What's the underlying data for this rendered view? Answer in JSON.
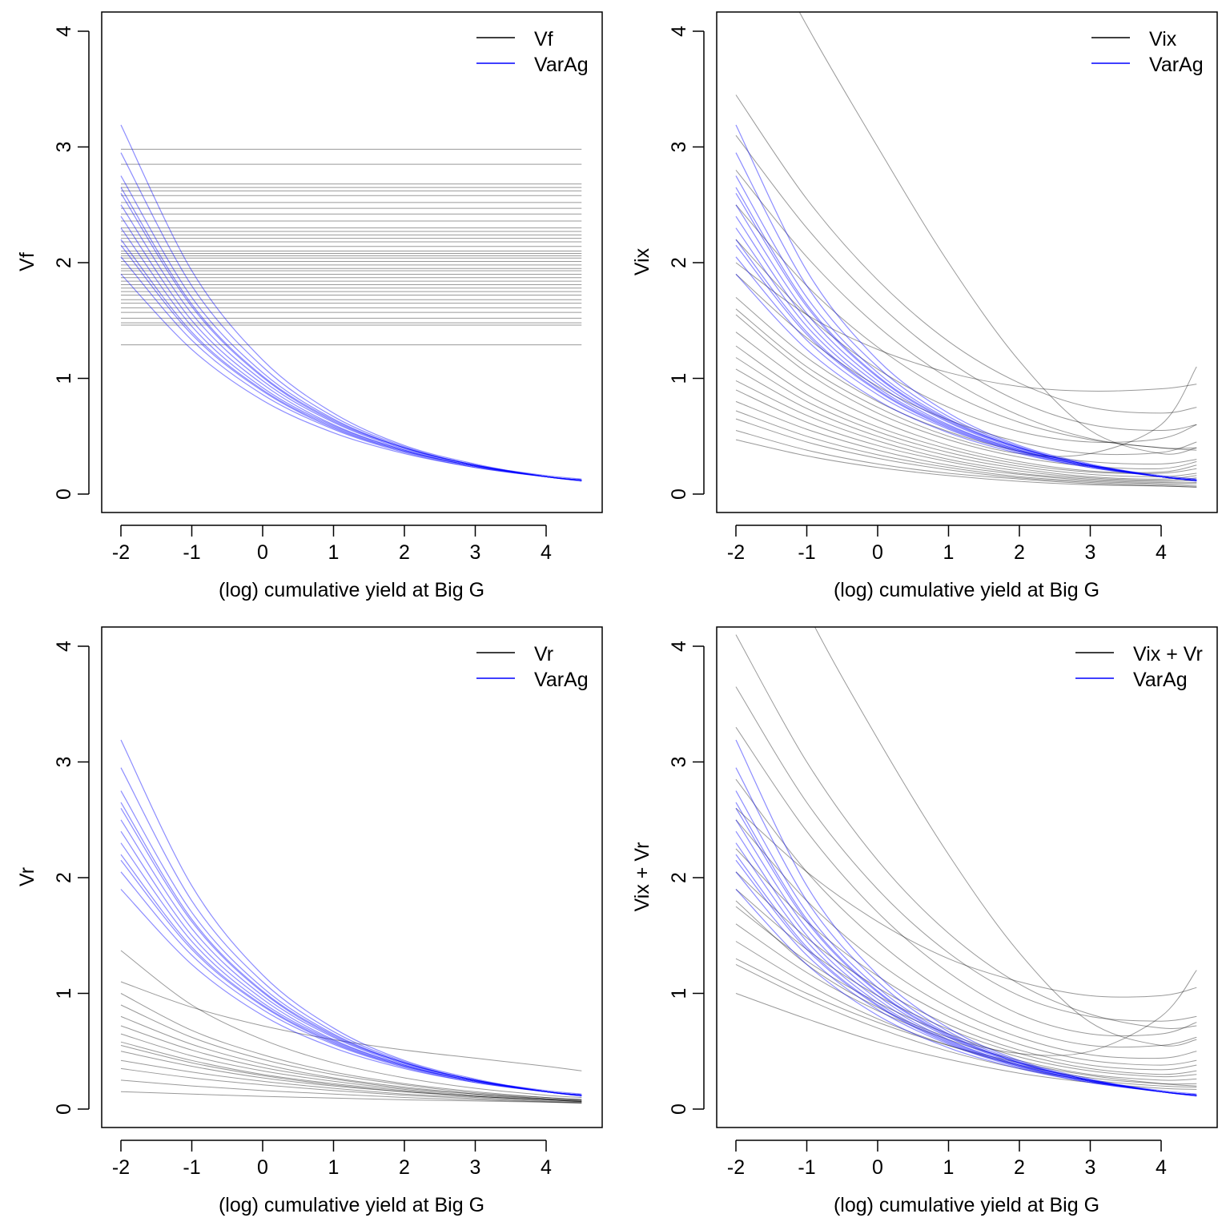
{
  "chart_data": [
    {
      "type": "line",
      "ylabel": "Vf",
      "xlabel": "(log) cumulative yield at Big G",
      "xlim": [
        -2.3,
        4.75
      ],
      "ylim": [
        -0.15,
        4.15
      ],
      "xticks": [
        "-2",
        "-1",
        "0",
        "1",
        "2",
        "3",
        "4"
      ],
      "yticks": [
        "0",
        "1",
        "2",
        "3",
        "4"
      ],
      "legend": {
        "position": "top-right",
        "entries": [
          "Vf",
          "VarAg"
        ]
      },
      "colors": {
        "primary": "#000000",
        "VarAg": "#0000ff"
      },
      "x": [
        -2,
        -1,
        0,
        1,
        2,
        3,
        4,
        4.5
      ],
      "primary_constant": [
        2.98,
        2.85,
        2.68,
        2.65,
        2.62,
        2.58,
        2.52,
        2.47,
        2.42,
        2.36,
        2.3,
        2.27,
        2.24,
        2.21,
        2.18,
        2.14,
        2.1,
        2.08,
        2.06,
        2.04,
        2.01,
        1.98,
        1.95,
        1.93,
        1.9,
        1.87,
        1.84,
        1.81,
        1.78,
        1.75,
        1.72,
        1.68,
        1.65,
        1.61,
        1.57,
        1.52,
        1.48,
        1.46,
        1.29
      ],
      "varag": "shared"
    },
    {
      "type": "line",
      "ylabel": "Vix",
      "xlabel": "(log) cumulative yield at Big G",
      "xlim": [
        -2.3,
        4.75
      ],
      "ylim": [
        -0.15,
        4.15
      ],
      "xticks": [
        "-2",
        "-1",
        "0",
        "1",
        "2",
        "3",
        "4"
      ],
      "yticks": [
        "0",
        "1",
        "2",
        "3",
        "4"
      ],
      "legend": {
        "position": "top-right",
        "entries": [
          "Vix",
          "VarAg"
        ]
      },
      "x": [
        -2,
        -1,
        0,
        1,
        2,
        3,
        4,
        4.5
      ],
      "primary": [
        [
          0.47,
          0.33,
          0.23,
          0.16,
          0.11,
          0.08,
          0.07,
          0.06
        ],
        [
          0.55,
          0.38,
          0.26,
          0.18,
          0.13,
          0.09,
          0.07,
          0.06
        ],
        [
          0.65,
          0.45,
          0.31,
          0.21,
          0.14,
          0.1,
          0.08,
          0.07
        ],
        [
          0.72,
          0.5,
          0.34,
          0.23,
          0.15,
          0.11,
          0.09,
          0.09
        ],
        [
          0.8,
          0.56,
          0.38,
          0.25,
          0.17,
          0.12,
          0.1,
          0.1
        ],
        [
          0.9,
          0.62,
          0.42,
          0.28,
          0.18,
          0.13,
          0.11,
          0.12
        ],
        [
          0.98,
          0.68,
          0.46,
          0.3,
          0.2,
          0.14,
          0.12,
          0.14
        ],
        [
          1.08,
          0.74,
          0.5,
          0.33,
          0.22,
          0.15,
          0.13,
          0.16
        ],
        [
          1.18,
          0.8,
          0.54,
          0.36,
          0.24,
          0.17,
          0.15,
          0.18
        ],
        [
          1.28,
          0.86,
          0.58,
          0.39,
          0.26,
          0.19,
          0.18,
          0.22
        ],
        [
          1.4,
          0.95,
          0.64,
          0.42,
          0.28,
          0.2,
          0.19,
          0.25
        ],
        [
          1.55,
          1.05,
          0.7,
          0.47,
          0.32,
          0.24,
          0.22,
          0.28
        ],
        [
          1.7,
          1.18,
          0.8,
          0.54,
          0.37,
          0.28,
          0.26,
          0.3
        ],
        [
          1.9,
          1.35,
          0.93,
          0.64,
          0.45,
          0.35,
          0.36,
          0.45
        ],
        [
          2.2,
          1.55,
          1.08,
          0.75,
          0.54,
          0.45,
          0.48,
          0.6
        ],
        [
          2.5,
          1.8,
          1.27,
          0.88,
          0.62,
          0.47,
          0.4,
          0.38
        ],
        [
          2.8,
          2.05,
          1.45,
          1.0,
          0.68,
          0.48,
          0.4,
          0.4
        ],
        [
          3.1,
          2.3,
          1.65,
          1.15,
          0.8,
          0.6,
          0.55,
          0.6
        ],
        [
          3.45,
          2.55,
          1.85,
          1.32,
          0.96,
          0.75,
          0.7,
          0.75
        ],
        [
          2.0,
          1.55,
          1.25,
          1.05,
          0.93,
          0.89,
          0.91,
          0.95
        ],
        [
          5.2,
          4.05,
          3.0,
          2.0,
          1.15,
          0.55,
          0.35,
          0.4
        ],
        [
          1.6,
          1.1,
          0.75,
          0.5,
          0.35,
          0.35,
          0.6,
          1.1
        ]
      ],
      "varag": "shared"
    },
    {
      "type": "line",
      "ylabel": "Vr",
      "xlabel": "(log) cumulative yield at Big G",
      "xlim": [
        -2.3,
        4.75
      ],
      "ylim": [
        -0.15,
        4.15
      ],
      "xticks": [
        "-2",
        "-1",
        "0",
        "1",
        "2",
        "3",
        "4"
      ],
      "yticks": [
        "0",
        "1",
        "2",
        "3",
        "4"
      ],
      "legend": {
        "position": "top-right",
        "entries": [
          "Vr",
          "VarAg"
        ]
      },
      "x": [
        -2,
        -1,
        0,
        1,
        2,
        3,
        4,
        4.5
      ],
      "primary": [
        [
          0.15,
          0.13,
          0.11,
          0.095,
          0.08,
          0.07,
          0.06,
          0.055
        ],
        [
          0.25,
          0.2,
          0.16,
          0.13,
          0.1,
          0.08,
          0.06,
          0.05
        ],
        [
          0.35,
          0.27,
          0.21,
          0.16,
          0.12,
          0.09,
          0.065,
          0.055
        ],
        [
          0.42,
          0.32,
          0.24,
          0.18,
          0.13,
          0.1,
          0.07,
          0.06
        ],
        [
          0.5,
          0.37,
          0.27,
          0.2,
          0.15,
          0.11,
          0.08,
          0.065
        ],
        [
          0.55,
          0.4,
          0.29,
          0.21,
          0.15,
          0.11,
          0.08,
          0.065
        ],
        [
          0.58,
          0.42,
          0.3,
          0.22,
          0.16,
          0.11,
          0.08,
          0.065
        ],
        [
          0.65,
          0.46,
          0.33,
          0.24,
          0.17,
          0.12,
          0.085,
          0.07
        ],
        [
          0.72,
          0.51,
          0.36,
          0.26,
          0.18,
          0.13,
          0.09,
          0.075
        ],
        [
          0.8,
          0.56,
          0.39,
          0.27,
          0.19,
          0.13,
          0.09,
          0.075
        ],
        [
          0.9,
          0.62,
          0.43,
          0.3,
          0.21,
          0.14,
          0.1,
          0.08
        ],
        [
          1.0,
          0.68,
          0.47,
          0.32,
          0.22,
          0.15,
          0.1,
          0.085
        ],
        [
          1.37,
          0.9,
          0.6,
          0.4,
          0.27,
          0.18,
          0.12,
          0.1
        ],
        [
          1.1,
          0.88,
          0.72,
          0.6,
          0.51,
          0.44,
          0.37,
          0.33
        ]
      ],
      "varag": "shared"
    },
    {
      "type": "line",
      "ylabel": "Vix + Vr",
      "xlabel": "(log) cumulative yield at Big G",
      "xlim": [
        -2.3,
        4.75
      ],
      "ylim": [
        -0.15,
        4.15
      ],
      "xticks": [
        "-2",
        "-1",
        "0",
        "1",
        "2",
        "3",
        "4"
      ],
      "yticks": [
        "0",
        "1",
        "2",
        "3",
        "4"
      ],
      "legend": {
        "position": "top-right",
        "entries": [
          "Vix + Vr",
          "VarAg"
        ]
      },
      "x": [
        -2,
        -1,
        0,
        1,
        2,
        3,
        4,
        4.5
      ],
      "primary": [
        [
          1.0,
          0.78,
          0.58,
          0.43,
          0.31,
          0.23,
          0.18,
          0.17
        ],
        [
          1.25,
          0.95,
          0.7,
          0.5,
          0.35,
          0.25,
          0.2,
          0.19
        ],
        [
          1.3,
          1.0,
          0.75,
          0.55,
          0.4,
          0.29,
          0.22,
          0.2
        ],
        [
          1.45,
          1.08,
          0.78,
          0.55,
          0.38,
          0.27,
          0.22,
          0.22
        ],
        [
          1.6,
          1.18,
          0.85,
          0.6,
          0.42,
          0.3,
          0.25,
          0.26
        ],
        [
          1.75,
          1.28,
          0.92,
          0.65,
          0.45,
          0.33,
          0.28,
          0.3
        ],
        [
          1.9,
          1.38,
          0.98,
          0.69,
          0.48,
          0.35,
          0.3,
          0.33
        ],
        [
          2.05,
          1.48,
          1.05,
          0.73,
          0.51,
          0.38,
          0.34,
          0.38
        ],
        [
          2.25,
          1.62,
          1.15,
          0.8,
          0.56,
          0.42,
          0.38,
          0.42
        ],
        [
          2.5,
          1.8,
          1.27,
          0.88,
          0.62,
          0.47,
          0.44,
          0.5
        ],
        [
          2.85,
          2.05,
          1.45,
          1.0,
          0.7,
          0.55,
          0.55,
          0.62
        ],
        [
          3.3,
          2.4,
          1.7,
          1.18,
          0.82,
          0.65,
          0.65,
          0.75
        ],
        [
          3.65,
          2.65,
          1.9,
          1.35,
          0.98,
          0.8,
          0.76,
          0.8
        ],
        [
          4.1,
          3.0,
          2.15,
          1.52,
          1.08,
          0.82,
          0.7,
          0.72
        ],
        [
          2.6,
          2.05,
          1.62,
          1.3,
          1.1,
          0.98,
          0.98,
          1.05
        ],
        [
          5.6,
          4.3,
          3.2,
          2.2,
          1.35,
          0.75,
          0.55,
          0.6
        ],
        [
          1.8,
          1.25,
          0.88,
          0.62,
          0.48,
          0.5,
          0.8,
          1.2
        ]
      ],
      "varag": "shared"
    }
  ],
  "varag_series": {
    "name": "VarAg",
    "x": [
      -2,
      -1,
      0,
      1,
      2,
      3,
      4,
      4.5
    ],
    "curves": [
      [
        1.9,
        1.25,
        0.81,
        0.53,
        0.35,
        0.23,
        0.15,
        0.12
      ],
      [
        2.05,
        1.33,
        0.86,
        0.56,
        0.36,
        0.23,
        0.15,
        0.12
      ],
      [
        2.15,
        1.38,
        0.89,
        0.57,
        0.37,
        0.24,
        0.15,
        0.11
      ],
      [
        2.2,
        1.4,
        0.9,
        0.58,
        0.37,
        0.24,
        0.15,
        0.12
      ],
      [
        2.3,
        1.45,
        0.92,
        0.59,
        0.38,
        0.24,
        0.15,
        0.12
      ],
      [
        2.4,
        1.5,
        0.95,
        0.6,
        0.38,
        0.24,
        0.15,
        0.12
      ],
      [
        2.5,
        1.56,
        0.98,
        0.62,
        0.39,
        0.25,
        0.15,
        0.12
      ],
      [
        2.6,
        1.62,
        1.01,
        0.63,
        0.4,
        0.25,
        0.15,
        0.12
      ],
      [
        2.65,
        1.64,
        1.02,
        0.64,
        0.4,
        0.25,
        0.16,
        0.13
      ],
      [
        2.75,
        1.7,
        1.05,
        0.65,
        0.4,
        0.25,
        0.15,
        0.12
      ],
      [
        2.95,
        1.8,
        1.1,
        0.67,
        0.41,
        0.25,
        0.15,
        0.12
      ],
      [
        3.19,
        1.93,
        1.16,
        0.7,
        0.42,
        0.26,
        0.15,
        0.12
      ]
    ]
  }
}
